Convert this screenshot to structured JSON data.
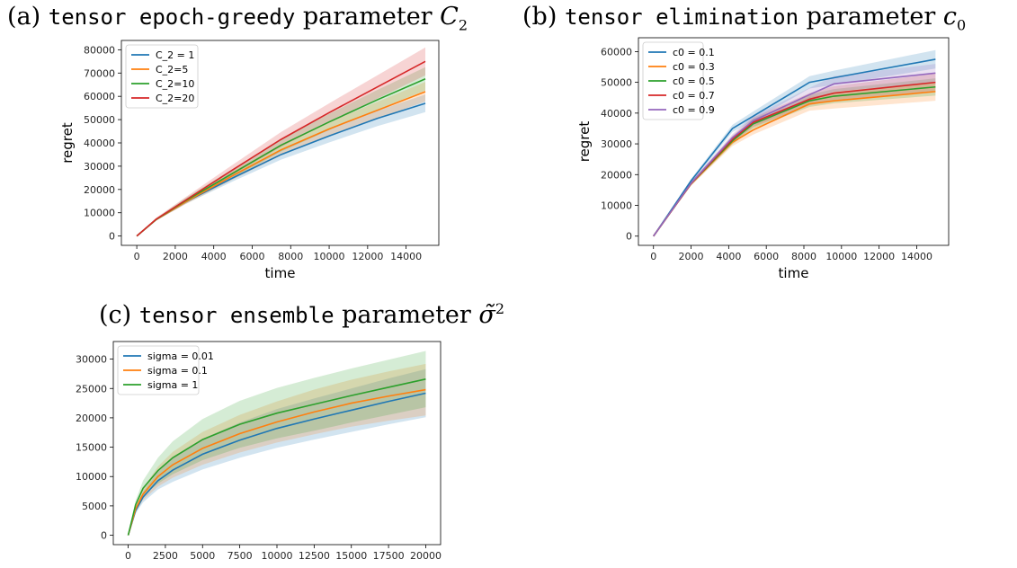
{
  "captions": [
    {
      "prefix": "(a) ",
      "mono": "tensor epoch-greedy",
      "middle": " parameter ",
      "param": "C",
      "sub": "2",
      "sup": ""
    },
    {
      "prefix": "(b) ",
      "mono": "tensor elimination",
      "middle": " parameter ",
      "param": "c",
      "sub": "0",
      "sup": ""
    },
    {
      "prefix": "(c) ",
      "mono": "tensor ensemble",
      "middle": " parameter ",
      "param": "σ̃",
      "sub": "",
      "sup": "2"
    }
  ],
  "chart_data": [
    {
      "type": "line",
      "title": "",
      "xlabel": "time",
      "ylabel": "regret",
      "xlim": [
        -800,
        15700
      ],
      "ylim": [
        -4000,
        84000
      ],
      "xticks": [
        0,
        2000,
        4000,
        6000,
        8000,
        10000,
        12000,
        14000
      ],
      "yticks": [
        0,
        10000,
        20000,
        30000,
        40000,
        50000,
        60000,
        70000,
        80000
      ],
      "legend_position": "top-left",
      "series": [
        {
          "name": "C_2 = 1",
          "color": "#1f77b4",
          "x": [
            0,
            1000,
            2500,
            5000,
            7500,
            10000,
            12500,
            15000
          ],
          "y": [
            0,
            7000,
            14500,
            25000,
            35000,
            43000,
            50500,
            57000
          ],
          "band": [
            0,
            400,
            900,
            1500,
            2200,
            2800,
            3300,
            3800
          ]
        },
        {
          "name": "C_2=5",
          "color": "#ff7f0e",
          "x": [
            0,
            1000,
            2500,
            5000,
            7500,
            10000,
            12500,
            15000
          ],
          "y": [
            0,
            7000,
            14500,
            26000,
            37000,
            46000,
            54000,
            62000
          ],
          "band": [
            0,
            400,
            1000,
            1700,
            2400,
            3000,
            3600,
            4200
          ]
        },
        {
          "name": "C_2=10",
          "color": "#2ca02c",
          "x": [
            0,
            1000,
            2500,
            5000,
            7500,
            10000,
            12500,
            15000
          ],
          "y": [
            0,
            7100,
            15000,
            27000,
            39000,
            49000,
            58500,
            67500
          ],
          "band": [
            0,
            500,
            1100,
            1900,
            2700,
            3500,
            4200,
            5000
          ]
        },
        {
          "name": "C_2=20",
          "color": "#d62728",
          "x": [
            0,
            1000,
            2500,
            5000,
            7500,
            10000,
            12500,
            15000
          ],
          "y": [
            0,
            7200,
            15200,
            28500,
            41500,
            53000,
            64000,
            75000
          ],
          "band": [
            0,
            600,
            1300,
            2200,
            3200,
            4000,
            5000,
            6000
          ]
        }
      ]
    },
    {
      "type": "line",
      "title": "",
      "xlabel": "time",
      "ylabel": "regret",
      "xlim": [
        -800,
        15700
      ],
      "ylim": [
        -3000,
        64500
      ],
      "xticks": [
        0,
        2000,
        4000,
        6000,
        8000,
        10000,
        12000,
        14000
      ],
      "yticks": [
        0,
        10000,
        20000,
        30000,
        40000,
        50000,
        60000
      ],
      "legend_position": "top-left",
      "series": [
        {
          "name": "c0 = 0.1",
          "color": "#1f77b4",
          "x": [
            0,
            2000,
            4200,
            5300,
            8300,
            9600,
            15000
          ],
          "y": [
            0,
            18000,
            35000,
            39000,
            50000,
            51500,
            57500
          ],
          "band": [
            0,
            600,
            1200,
            1500,
            2000,
            2300,
            3000
          ]
        },
        {
          "name": "c0 = 0.3",
          "color": "#ff7f0e",
          "x": [
            0,
            2000,
            4200,
            5300,
            8300,
            9600,
            15000
          ],
          "y": [
            0,
            17000,
            30500,
            34500,
            43000,
            44000,
            47000
          ],
          "band": [
            0,
            600,
            1200,
            1500,
            2200,
            2500,
            3000
          ]
        },
        {
          "name": "c0 = 0.5",
          "color": "#2ca02c",
          "x": [
            0,
            2000,
            4200,
            5300,
            8300,
            9600,
            15000
          ],
          "y": [
            0,
            17100,
            31000,
            36500,
            44000,
            45500,
            48500
          ],
          "band": [
            0,
            600,
            1200,
            1500,
            2000,
            2300,
            2800
          ]
        },
        {
          "name": "c0 = 0.7",
          "color": "#d62728",
          "x": [
            0,
            2000,
            4200,
            5300,
            8300,
            9600,
            15000
          ],
          "y": [
            0,
            17100,
            31500,
            37000,
            44500,
            46500,
            50000
          ],
          "band": [
            0,
            600,
            1200,
            1500,
            2000,
            2300,
            2800
          ]
        },
        {
          "name": "c0 = 0.9",
          "color": "#9467bd",
          "x": [
            0,
            2000,
            4200,
            5300,
            8300,
            9600,
            15000
          ],
          "y": [
            0,
            17200,
            32000,
            37500,
            46000,
            49500,
            53000
          ],
          "band": [
            0,
            600,
            1200,
            1500,
            2200,
            2500,
            3000
          ]
        }
      ]
    },
    {
      "type": "line",
      "title": "",
      "xlabel": "",
      "ylabel": "",
      "xlim": [
        -1000,
        21000
      ],
      "ylim": [
        -1600,
        33000
      ],
      "xticks": [
        0,
        2500,
        5000,
        7500,
        10000,
        12500,
        15000,
        17500,
        20000
      ],
      "yticks": [
        0,
        5000,
        10000,
        15000,
        20000,
        25000,
        30000
      ],
      "legend_position": "top-left",
      "series": [
        {
          "name": "sigma = 0.01",
          "color": "#1f77b4",
          "x": [
            0,
            500,
            1000,
            2000,
            3000,
            5000,
            7500,
            10000,
            12500,
            15000,
            17500,
            20000
          ],
          "y": [
            0,
            4200,
            6500,
            9300,
            11100,
            13800,
            16200,
            18200,
            19800,
            21300,
            22800,
            24200
          ],
          "band": [
            0,
            500,
            900,
            1500,
            2000,
            2600,
            3000,
            3300,
            3500,
            3700,
            3900,
            4100
          ]
        },
        {
          "name": "sigma = 0.1",
          "color": "#ff7f0e",
          "x": [
            0,
            500,
            1000,
            2000,
            3000,
            5000,
            7500,
            10000,
            12500,
            15000,
            17500,
            20000
          ],
          "y": [
            0,
            4500,
            7000,
            10000,
            12000,
            14800,
            17300,
            19300,
            21000,
            22500,
            23700,
            24800
          ],
          "band": [
            0,
            500,
            1000,
            1700,
            2200,
            2800,
            3200,
            3500,
            3800,
            4000,
            4200,
            4400
          ]
        },
        {
          "name": "sigma = 1",
          "color": "#2ca02c",
          "x": [
            0,
            500,
            1000,
            2000,
            3000,
            5000,
            7500,
            10000,
            12500,
            15000,
            17500,
            20000
          ],
          "y": [
            0,
            5200,
            8000,
            11000,
            13200,
            16300,
            18900,
            20800,
            22300,
            23800,
            25200,
            26600
          ],
          "band": [
            0,
            700,
            1300,
            2200,
            2800,
            3500,
            4000,
            4300,
            4500,
            4600,
            4700,
            4800
          ]
        }
      ]
    }
  ]
}
